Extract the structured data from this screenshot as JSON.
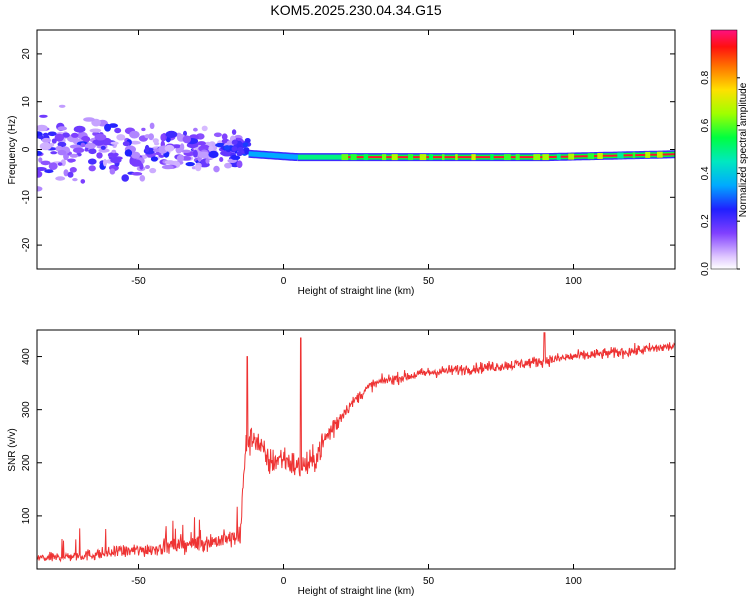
{
  "chart_data": [
    {
      "type": "heatmap",
      "title": "KOM5.2025.230.04.34.G15",
      "xlabel": "Height of straight line (km)",
      "ylabel": "Frequency (Hz)",
      "xlim": [
        -85,
        135
      ],
      "ylim": [
        -25,
        25
      ],
      "xticks": [
        "-50",
        "0",
        "50",
        "100"
      ],
      "xtick_values": [
        -50,
        0,
        50,
        100
      ],
      "yticks": [
        "-20",
        "-10",
        "0",
        "10",
        "20"
      ],
      "ytick_values": [
        -20,
        -10,
        0,
        10,
        20
      ],
      "colorbar": {
        "label": "Normalized spectral amplitude",
        "range": [
          0,
          1
        ],
        "ticks": [
          "0.0",
          "0.2",
          "0.4",
          "0.6",
          "0.8"
        ],
        "tick_values": [
          0.0,
          0.2,
          0.4,
          0.6,
          0.8
        ]
      },
      "line_segments": [
        {
          "x0": -12,
          "f0": -0.9,
          "x1": 5,
          "f1": -1.6,
          "level": 0.35
        },
        {
          "x0": 5,
          "f0": -1.6,
          "x1": 20,
          "f1": -1.6,
          "level": 0.5
        },
        {
          "x0": 20,
          "f0": -1.6,
          "x1": 90,
          "f1": -1.6,
          "level": 0.95
        },
        {
          "x0": 90,
          "f0": -1.6,
          "x1": 105,
          "f1": -1.4,
          "level": 0.95
        },
        {
          "x0": 105,
          "f0": -1.4,
          "x1": 135,
          "f1": -1.0,
          "level": 0.95
        }
      ],
      "scatter_region": {
        "x": [
          -85,
          -15
        ],
        "f": [
          -12,
          12
        ]
      }
    },
    {
      "type": "line",
      "xlabel": "Height of straight line (km)",
      "ylabel": "SNR (v/v)",
      "xlim": [
        -85,
        135
      ],
      "ylim": [
        0,
        450
      ],
      "xticks": [
        "-50",
        "0",
        "50",
        "100"
      ],
      "xtick_values": [
        -50,
        0,
        50,
        100
      ],
      "yticks": [
        "100",
        "200",
        "300",
        "400"
      ],
      "ytick_values": [
        100,
        200,
        300,
        400
      ],
      "color": "#ee3333",
      "series": [
        {
          "name": "SNR",
          "x": [
            -85,
            -70,
            -50,
            -35,
            -20,
            -15,
            -13,
            -10,
            -5,
            0,
            5,
            10,
            15,
            20,
            25,
            30,
            35,
            40,
            50,
            60,
            70,
            80,
            90,
            100,
            110,
            120,
            135
          ],
          "values": [
            20,
            25,
            35,
            45,
            55,
            60,
            230,
            250,
            200,
            210,
            190,
            200,
            250,
            290,
            320,
            345,
            355,
            360,
            370,
            375,
            380,
            385,
            392,
            400,
            405,
            410,
            420
          ]
        }
      ],
      "spikes": [
        {
          "x": -12.5,
          "value": 400
        },
        {
          "x": 6,
          "value": 435
        },
        {
          "x": 90,
          "value": 445
        }
      ]
    }
  ]
}
